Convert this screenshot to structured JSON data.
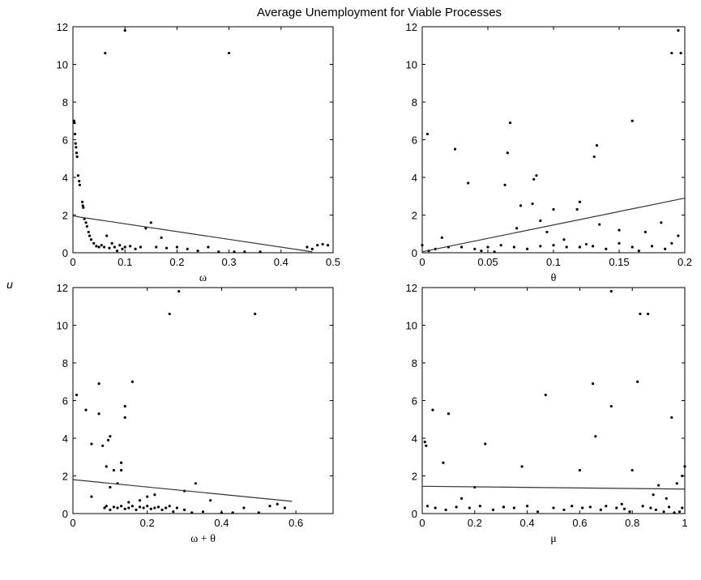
{
  "title": "Average Unemployment for Viable Processes",
  "ylabel": "u",
  "chart_data": [
    {
      "type": "scatter",
      "xlabel": "ω",
      "xlim": [
        0,
        0.5
      ],
      "xticks": [
        0,
        0.1,
        0.2,
        0.3,
        0.4,
        0.5
      ],
      "ylim": [
        0,
        12
      ],
      "yticks": [
        0,
        2,
        4,
        6,
        8,
        10,
        12
      ],
      "color": "#000000",
      "x": [
        0.002,
        0.003,
        0.004,
        0.005,
        0.006,
        0.007,
        0.008,
        0.01,
        0.012,
        0.013,
        0.018,
        0.019,
        0.02,
        0.022,
        0.025,
        0.027,
        0.03,
        0.032,
        0.035,
        0.04,
        0.045,
        0.05,
        0.055,
        0.06,
        0.07,
        0.08,
        0.09,
        0.1,
        0.11,
        0.12,
        0.13,
        0.14,
        0.15,
        0.16,
        0.17,
        0.18,
        0.2,
        0.22,
        0.24,
        0.26,
        0.28,
        0.31,
        0.33,
        0.36,
        0.45,
        0.46,
        0.47,
        0.48,
        0.49,
        0.062,
        0.1,
        0.3,
        0.065,
        0.075,
        0.085,
        0.095
      ],
      "values": [
        7,
        6.9,
        6.3,
        5.8,
        5.6,
        5.3,
        5.1,
        4.1,
        3.8,
        3.6,
        2.7,
        2.5,
        2.4,
        1.8,
        1.6,
        1.4,
        1.1,
        0.9,
        0.7,
        0.5,
        0.35,
        0.3,
        0.4,
        0.3,
        0.25,
        0.3,
        0.4,
        0.3,
        0.35,
        0.2,
        0.3,
        1.3,
        1.6,
        0.3,
        0.8,
        0.25,
        0.3,
        0.2,
        0.1,
        0.3,
        0.05,
        0.05,
        0.05,
        0.05,
        0.3,
        0.2,
        0.4,
        0.45,
        0.4,
        10.6,
        11.8,
        10.6,
        0.9,
        0.5,
        0.1,
        0.2
      ],
      "fit": {
        "x": [
          0,
          0.46
        ],
        "values": [
          1.95,
          0.05
        ]
      }
    },
    {
      "type": "scatter",
      "xlabel": "θ",
      "xlim": [
        0,
        0.2
      ],
      "xticks": [
        0,
        0.05,
        0.1,
        0.15,
        0.2
      ],
      "ylim": [
        0,
        12
      ],
      "yticks": [
        0,
        2,
        4,
        6,
        8,
        10,
        12
      ],
      "color": "#000000",
      "x": [
        0.195,
        0.19,
        0.197,
        0.004,
        0.025,
        0.067,
        0.065,
        0.16,
        0.133,
        0.131,
        0.035,
        0.063,
        0.087,
        0.085,
        0.084,
        0.12,
        0.118,
        0.1,
        0.135,
        0.075,
        0.09,
        0.17,
        0.182,
        0.195,
        0.15,
        0.015,
        0.01,
        0.0,
        0.005,
        0.02,
        0.03,
        0.04,
        0.05,
        0.06,
        0.07,
        0.08,
        0.09,
        0.1,
        0.11,
        0.12,
        0.125,
        0.13,
        0.14,
        0.15,
        0.16,
        0.165,
        0.175,
        0.185,
        0.045,
        0.055,
        0.072,
        0.095,
        0.108,
        0.19
      ],
      "values": [
        11.8,
        10.6,
        10.6,
        6.3,
        5.5,
        6.9,
        5.3,
        7,
        5.7,
        5.1,
        3.7,
        3.6,
        4.1,
        3.9,
        2.6,
        2.7,
        2.3,
        2.3,
        1.5,
        2.5,
        1.7,
        1.1,
        1.6,
        0.9,
        1.2,
        0.8,
        0.2,
        0.4,
        0.1,
        0.3,
        0.3,
        0.2,
        0.3,
        0.4,
        0.3,
        0.2,
        0.35,
        0.4,
        0.3,
        0.3,
        0.45,
        0.35,
        0.2,
        0.5,
        0.3,
        0.1,
        0.35,
        0.2,
        0.1,
        0.05,
        1.3,
        1.1,
        0.7,
        0.5
      ],
      "fit": {
        "x": [
          0,
          0.2
        ],
        "values": [
          0.05,
          2.9
        ]
      }
    },
    {
      "type": "scatter",
      "xlabel": "ω + θ",
      "xlim": [
        0,
        0.7
      ],
      "xticks": [
        0,
        0.2,
        0.4,
        0.6
      ],
      "ylim": [
        0,
        12
      ],
      "yticks": [
        0,
        2,
        4,
        6,
        8,
        10,
        12
      ],
      "color": "#000000",
      "x": [
        0.26,
        0.285,
        0.49,
        0.01,
        0.035,
        0.07,
        0.07,
        0.16,
        0.14,
        0.14,
        0.05,
        0.08,
        0.1,
        0.095,
        0.09,
        0.13,
        0.13,
        0.11,
        0.1,
        0.12,
        0.33,
        0.3,
        0.05,
        0.085,
        0.09,
        0.1,
        0.11,
        0.12,
        0.13,
        0.14,
        0.15,
        0.16,
        0.17,
        0.18,
        0.19,
        0.2,
        0.21,
        0.22,
        0.23,
        0.24,
        0.25,
        0.26,
        0.27,
        0.28,
        0.3,
        0.32,
        0.35,
        0.37,
        0.4,
        0.43,
        0.46,
        0.5,
        0.53,
        0.55,
        0.57,
        0.2,
        0.22,
        0.18,
        0.15
      ],
      "values": [
        10.6,
        11.8,
        10.6,
        6.3,
        5.5,
        6.9,
        5.3,
        7,
        5.7,
        5.1,
        3.7,
        3.6,
        4.1,
        3.9,
        2.5,
        2.7,
        2.3,
        2.3,
        1.4,
        1.6,
        1.6,
        1.2,
        0.9,
        0.3,
        0.4,
        0.2,
        0.35,
        0.3,
        0.4,
        0.25,
        0.3,
        0.4,
        0.2,
        0.35,
        0.3,
        0.4,
        0.25,
        0.3,
        0.35,
        0.2,
        0.3,
        0.4,
        0.1,
        0.3,
        0.2,
        0.05,
        0.1,
        0.7,
        0.05,
        0.05,
        0.3,
        0.05,
        0.4,
        0.5,
        0.3,
        0.9,
        1.0,
        0.7,
        0.6
      ],
      "fit": {
        "x": [
          0,
          0.59
        ],
        "values": [
          1.8,
          0.65
        ]
      }
    },
    {
      "type": "scatter",
      "xlabel": "μ",
      "xlim": [
        0,
        1
      ],
      "xticks": [
        0,
        0.2,
        0.4,
        0.6,
        0.8,
        1
      ],
      "ylim": [
        0,
        12
      ],
      "yticks": [
        0,
        2,
        4,
        6,
        8,
        10,
        12
      ],
      "color": "#000000",
      "x": [
        0.72,
        0.83,
        0.86,
        0.47,
        0.04,
        0.1,
        0.65,
        0.82,
        0.72,
        0.95,
        0.01,
        0.015,
        0.24,
        0.66,
        0.08,
        0.38,
        0.6,
        0.8,
        1.0,
        0.99,
        0.97,
        0.9,
        0.15,
        0.2,
        0.02,
        0.05,
        0.09,
        0.13,
        0.18,
        0.22,
        0.27,
        0.31,
        0.35,
        0.4,
        0.44,
        0.5,
        0.54,
        0.57,
        0.61,
        0.64,
        0.68,
        0.7,
        0.74,
        0.77,
        0.79,
        0.84,
        0.87,
        0.89,
        0.92,
        0.94,
        0.96,
        0.98,
        0.99,
        0.93,
        0.88,
        0.76
      ],
      "values": [
        11.8,
        10.6,
        10.6,
        6.3,
        5.5,
        5.3,
        6.9,
        7,
        5.7,
        5.1,
        3.8,
        3.6,
        3.7,
        4.1,
        2.7,
        2.5,
        2.3,
        2.3,
        2.5,
        2.0,
        1.6,
        1.5,
        0.8,
        1.4,
        0.4,
        0.3,
        0.2,
        0.35,
        0.3,
        0.4,
        0.2,
        0.35,
        0.3,
        0.4,
        0.1,
        0.3,
        0.2,
        0.4,
        0.3,
        0.35,
        0.2,
        0.4,
        0.3,
        0.25,
        0.1,
        0.4,
        0.3,
        0.2,
        0.1,
        0.35,
        0.05,
        0.1,
        0.3,
        0.8,
        1.0,
        0.5
      ],
      "fit": {
        "x": [
          0,
          1
        ],
        "values": [
          1.45,
          1.3
        ]
      }
    }
  ]
}
